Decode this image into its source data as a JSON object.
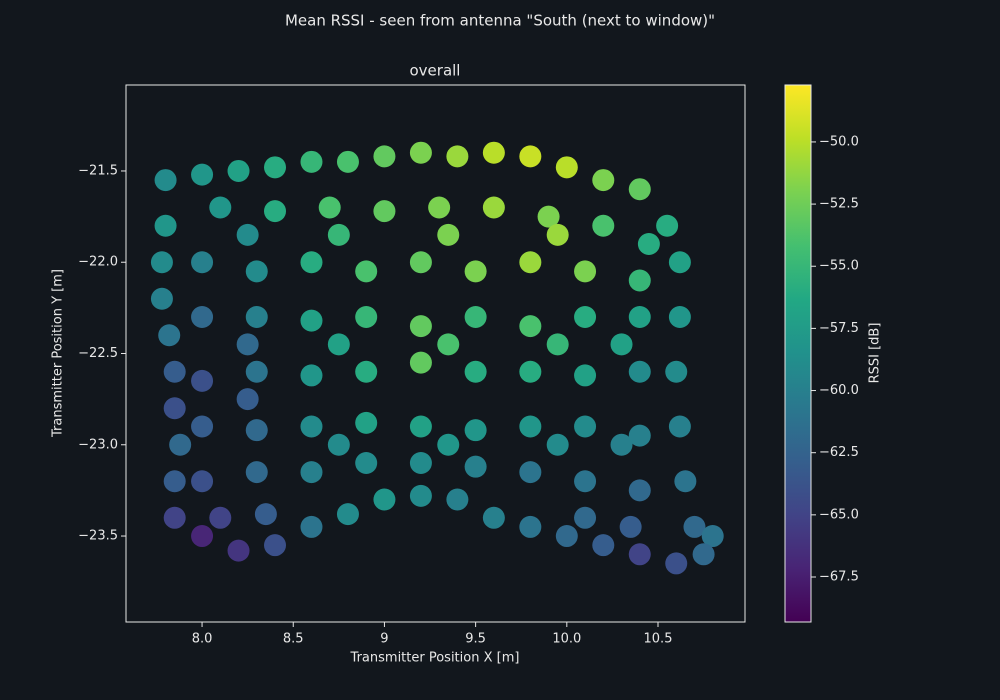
{
  "chart_data": {
    "type": "scatter",
    "suptitle": "Mean RSSI - seen from antenna \"South (next to window)\"",
    "title": "overall",
    "x_label": "Transmitter Position X [m]",
    "y_label": "Transmitter Position Y [m]",
    "colorbar_label": "RSSI [dB]",
    "colormap": "viridis",
    "xlim": [
      7.583,
      10.977
    ],
    "ylim": [
      -23.971,
      -21.029
    ],
    "clim": [
      -69.31,
      -47.71
    ],
    "xticks": [
      {
        "value": 8.0,
        "label": "8.0"
      },
      8.5,
      9.0,
      9.5,
      {
        "value": 10.0,
        "label": "10.0"
      },
      10.5
    ],
    "yticks": [
      {
        "value": -21.5,
        "label": "−21.5"
      },
      {
        "value": -22.0,
        "label": "−22.0"
      },
      {
        "value": -22.5,
        "label": "−22.5"
      },
      {
        "value": -23.0,
        "label": "−23.0"
      },
      {
        "value": -23.5,
        "label": "−23.5"
      }
    ],
    "cticks": [
      {
        "value": -50.0,
        "label": "−50.0"
      },
      {
        "value": -52.5,
        "label": "−52.5"
      },
      {
        "value": -55.0,
        "label": "−55.0"
      },
      {
        "value": -57.5,
        "label": "−57.5"
      },
      {
        "value": -60.0,
        "label": "−60.0"
      },
      {
        "value": -62.5,
        "label": "−62.5"
      },
      {
        "value": -65.0,
        "label": "−65.0"
      },
      {
        "value": -67.5,
        "label": "−67.5"
      }
    ],
    "x": [
      7.8,
      8.0,
      8.2,
      8.4,
      8.6,
      8.8,
      9.0,
      9.2,
      9.4,
      9.6,
      9.8,
      10.0,
      10.2,
      10.4,
      10.55,
      10.62,
      10.62,
      10.6,
      10.62,
      10.65,
      10.7,
      10.8,
      10.75,
      10.6,
      10.4,
      10.2,
      10.0,
      9.8,
      9.6,
      9.4,
      9.2,
      9.0,
      8.8,
      8.6,
      8.4,
      8.2,
      8.0,
      7.85,
      7.85,
      7.88,
      7.85,
      7.85,
      7.82,
      7.78,
      7.78,
      7.8,
      8.1,
      8.4,
      8.7,
      9.0,
      9.3,
      9.6,
      9.9,
      10.2,
      10.45,
      8.0,
      8.3,
      8.6,
      8.9,
      9.2,
      9.5,
      9.8,
      10.1,
      10.4,
      8.0,
      8.3,
      8.6,
      8.9,
      9.2,
      9.5,
      9.8,
      10.1,
      10.4,
      8.0,
      8.3,
      8.6,
      8.9,
      9.2,
      9.5,
      9.8,
      10.1,
      10.4,
      8.0,
      8.3,
      8.6,
      8.9,
      9.2,
      9.5,
      9.8,
      10.1,
      10.4,
      8.0,
      8.3,
      8.6,
      8.9,
      9.2,
      9.5,
      9.8,
      10.1,
      10.4,
      8.1,
      8.35,
      10.1,
      10.35,
      8.25,
      8.25,
      8.25,
      8.75,
      8.75,
      8.75,
      9.35,
      9.35,
      9.35,
      9.95,
      9.95,
      9.95,
      10.3,
      10.3
    ],
    "y": [
      -21.55,
      -21.52,
      -21.5,
      -21.48,
      -21.45,
      -21.45,
      -21.42,
      -21.4,
      -21.42,
      -21.4,
      -21.42,
      -21.48,
      -21.55,
      -21.6,
      -21.8,
      -22.0,
      -22.3,
      -22.6,
      -22.9,
      -23.2,
      -23.45,
      -23.5,
      -23.6,
      -23.65,
      -23.6,
      -23.55,
      -23.5,
      -23.45,
      -23.4,
      -23.3,
      -23.28,
      -23.3,
      -23.38,
      -23.45,
      -23.55,
      -23.58,
      -23.5,
      -23.4,
      -23.2,
      -23.0,
      -22.8,
      -22.6,
      -22.4,
      -22.2,
      -22.0,
      -21.8,
      -21.7,
      -21.72,
      -21.7,
      -21.72,
      -21.7,
      -21.7,
      -21.75,
      -21.8,
      -21.9,
      -22.0,
      -22.05,
      -22.0,
      -22.05,
      -22.0,
      -22.05,
      -22.0,
      -22.05,
      -22.1,
      -22.3,
      -22.3,
      -22.32,
      -22.3,
      -22.35,
      -22.3,
      -22.35,
      -22.3,
      -22.3,
      -22.65,
      -22.6,
      -22.62,
      -22.6,
      -22.55,
      -22.6,
      -22.6,
      -22.62,
      -22.6,
      -22.9,
      -22.92,
      -22.9,
      -22.88,
      -22.9,
      -22.92,
      -22.9,
      -22.9,
      -22.95,
      -23.2,
      -23.15,
      -23.15,
      -23.1,
      -23.1,
      -23.12,
      -23.15,
      -23.2,
      -23.25,
      -23.4,
      -23.38,
      -23.4,
      -23.45,
      -21.85,
      -22.45,
      -22.75,
      -21.85,
      -22.45,
      -23.0,
      -21.85,
      -22.45,
      -23.0,
      -21.85,
      -22.45,
      -23.0,
      -22.45,
      -23.0
    ],
    "values": [
      -59,
      -58,
      -57,
      -56,
      -55,
      -54,
      -53,
      -52,
      -51,
      -50,
      -49.5,
      -50,
      -52,
      -53,
      -56,
      -57,
      -58,
      -59,
      -60,
      -61,
      -62,
      -61,
      -62,
      -64,
      -65,
      -63,
      -62,
      -61,
      -60,
      -60,
      -59,
      -58,
      -59,
      -61,
      -64,
      -66,
      -67,
      -65,
      -63,
      -62,
      -64,
      -63,
      -61,
      -60,
      -59,
      -58,
      -58,
      -56,
      -54,
      -53,
      -52,
      -51,
      -52,
      -54,
      -56,
      -60,
      -59,
      -56,
      -54,
      -53,
      -52,
      -51,
      -52,
      -55,
      -62,
      -60,
      -57,
      -55,
      -53,
      -55,
      -54,
      -56,
      -57,
      -64,
      -61,
      -58,
      -56,
      -53,
      -56,
      -56,
      -57,
      -59,
      -63,
      -62,
      -59,
      -57,
      -57,
      -58,
      -58,
      -59,
      -60,
      -64,
      -62,
      -60,
      -59,
      -59,
      -60,
      -61,
      -61,
      -62,
      -65,
      -63,
      -62,
      -63,
      -59,
      -62,
      -63,
      -55,
      -57,
      -59,
      -52,
      -54,
      -58,
      -51,
      -55,
      -59,
      -57,
      -60
    ]
  }
}
